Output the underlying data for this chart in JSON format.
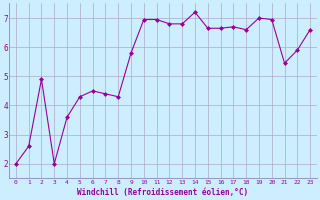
{
  "x": [
    0,
    1,
    2,
    3,
    4,
    5,
    6,
    7,
    8,
    9,
    10,
    11,
    12,
    13,
    14,
    15,
    16,
    17,
    18,
    19,
    20,
    21,
    22,
    23
  ],
  "y": [
    2.0,
    2.6,
    4.9,
    2.0,
    3.6,
    4.3,
    4.5,
    4.4,
    4.3,
    5.8,
    6.95,
    6.95,
    6.8,
    6.8,
    7.2,
    6.65,
    6.65,
    6.7,
    6.6,
    7.0,
    6.95,
    5.45,
    5.9,
    6.6
  ],
  "line_color": "#990099",
  "marker": "D",
  "marker_size": 2,
  "bg_color": "#cceeff",
  "grid_color": "#aaaacc",
  "xlabel": "Windchill (Refroidissement éolien,°C)",
  "xlabel_color": "#990099",
  "tick_color": "#990099",
  "xlim": [
    -0.5,
    23.5
  ],
  "ylim": [
    1.5,
    7.5
  ],
  "yticks": [
    2,
    3,
    4,
    5,
    6,
    7
  ],
  "xticks": [
    0,
    1,
    2,
    3,
    4,
    5,
    6,
    7,
    8,
    9,
    10,
    11,
    12,
    13,
    14,
    15,
    16,
    17,
    18,
    19,
    20,
    21,
    22,
    23
  ]
}
